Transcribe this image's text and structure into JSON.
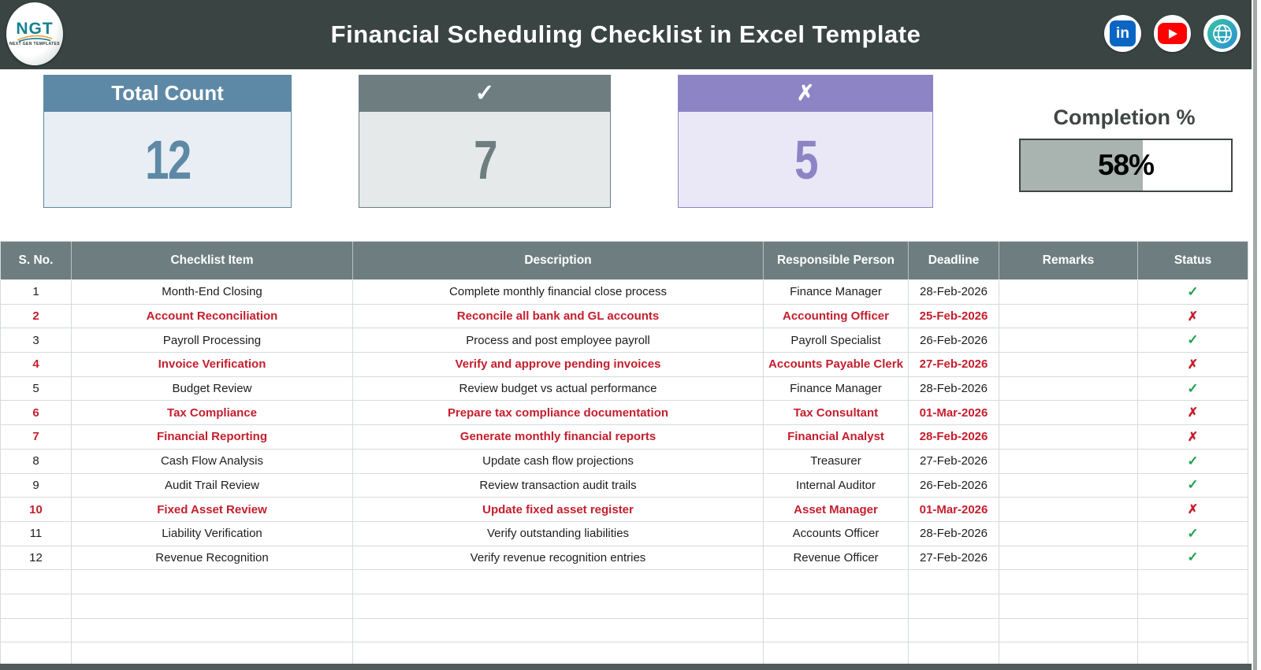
{
  "colors": {
    "topbar": "#3a4543",
    "steel": "#5e89a6",
    "steel-light": "#e8eef3",
    "slate": "#6e7e80",
    "slate-light": "#e5e9e9",
    "purple": "#8d84c6",
    "purple-light": "#eae8f6",
    "table-head": "#6e7e80",
    "grid": "#d5dbdb",
    "red": "#c41e2d",
    "green": "#1ea44c",
    "ink": "#3f4644",
    "progress-fill": "#a9b3b0"
  },
  "header": {
    "title": "Financial Scheduling Checklist in Excel Template",
    "logo_text": "NGT",
    "logo_tagline": "NEXT GEN TEMPLATES",
    "social_icons": [
      {
        "name": "linkedin",
        "glyph": "in"
      },
      {
        "name": "youtube"
      },
      {
        "name": "website"
      }
    ]
  },
  "summary": {
    "cards": [
      {
        "label": "Total Count",
        "value": "12"
      },
      {
        "label": "✓",
        "value": "7"
      },
      {
        "label": "✗",
        "value": "5"
      }
    ],
    "completion": {
      "label": "Completion %",
      "value": "58%",
      "percent": 58
    }
  },
  "table": {
    "columns": [
      "S. No.",
      "Checklist Item",
      "Description",
      "Responsible Person",
      "Deadline",
      "Remarks",
      "Status"
    ],
    "status_icons": {
      "done": "✓",
      "pending": "✗"
    },
    "rows": [
      {
        "sno": "1",
        "item": "Month-End Closing",
        "description": "Complete monthly financial close process",
        "person": "Finance Manager",
        "deadline": "28-Feb-2026",
        "remarks": "",
        "status": "done"
      },
      {
        "sno": "2",
        "item": "Account Reconciliation",
        "description": "Reconcile all bank and GL accounts",
        "person": "Accounting Officer",
        "deadline": "25-Feb-2026",
        "remarks": "",
        "status": "pending"
      },
      {
        "sno": "3",
        "item": "Payroll Processing",
        "description": "Process and post employee payroll",
        "person": "Payroll Specialist",
        "deadline": "26-Feb-2026",
        "remarks": "",
        "status": "done"
      },
      {
        "sno": "4",
        "item": "Invoice Verification",
        "description": "Verify and approve pending invoices",
        "person": "Accounts Payable Clerk",
        "deadline": "27-Feb-2026",
        "remarks": "",
        "status": "pending"
      },
      {
        "sno": "5",
        "item": "Budget Review",
        "description": "Review budget vs actual performance",
        "person": "Finance Manager",
        "deadline": "28-Feb-2026",
        "remarks": "",
        "status": "done"
      },
      {
        "sno": "6",
        "item": "Tax Compliance",
        "description": "Prepare tax compliance documentation",
        "person": "Tax Consultant",
        "deadline": "01-Mar-2026",
        "remarks": "",
        "status": "pending"
      },
      {
        "sno": "7",
        "item": "Financial Reporting",
        "description": "Generate monthly financial reports",
        "person": "Financial Analyst",
        "deadline": "28-Feb-2026",
        "remarks": "",
        "status": "pending"
      },
      {
        "sno": "8",
        "item": "Cash Flow Analysis",
        "description": "Update cash flow projections",
        "person": "Treasurer",
        "deadline": "27-Feb-2026",
        "remarks": "",
        "status": "done"
      },
      {
        "sno": "9",
        "item": "Audit Trail Review",
        "description": "Review transaction audit trails",
        "person": "Internal Auditor",
        "deadline": "26-Feb-2026",
        "remarks": "",
        "status": "done"
      },
      {
        "sno": "10",
        "item": "Fixed Asset Review",
        "description": "Update fixed asset register",
        "person": "Asset Manager",
        "deadline": "01-Mar-2026",
        "remarks": "",
        "status": "pending"
      },
      {
        "sno": "11",
        "item": "Liability Verification",
        "description": "Verify outstanding liabilities",
        "person": "Accounts Officer",
        "deadline": "28-Feb-2026",
        "remarks": "",
        "status": "done"
      },
      {
        "sno": "12",
        "item": "Revenue Recognition",
        "description": "Verify revenue recognition entries",
        "person": "Revenue Officer",
        "deadline": "27-Feb-2026",
        "remarks": "",
        "status": "done"
      }
    ],
    "empty_row_count": 4
  }
}
